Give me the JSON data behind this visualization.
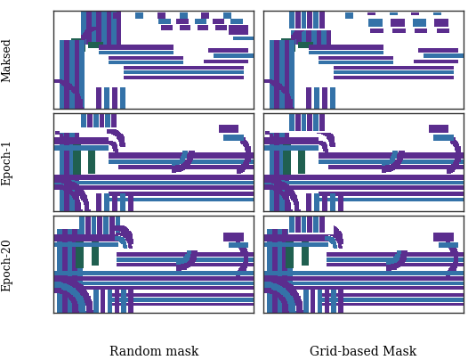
{
  "row_labels": [
    "Maksed",
    "Epoch-1",
    "Epoch-20"
  ],
  "col_labels": [
    "Random mask",
    "Grid-based Mask"
  ],
  "row_label_fontsize": 9,
  "col_label_fontsize": 10,
  "figsize": [
    5.26,
    4.04
  ],
  "dpi": 100,
  "background": "#ffffff",
  "colors": {
    "purple": [
      91,
      45,
      142
    ],
    "blue": [
      52,
      114,
      168
    ],
    "green": [
      32,
      96,
      80
    ],
    "white": [
      255,
      255,
      255
    ]
  },
  "border_color": "#333333"
}
